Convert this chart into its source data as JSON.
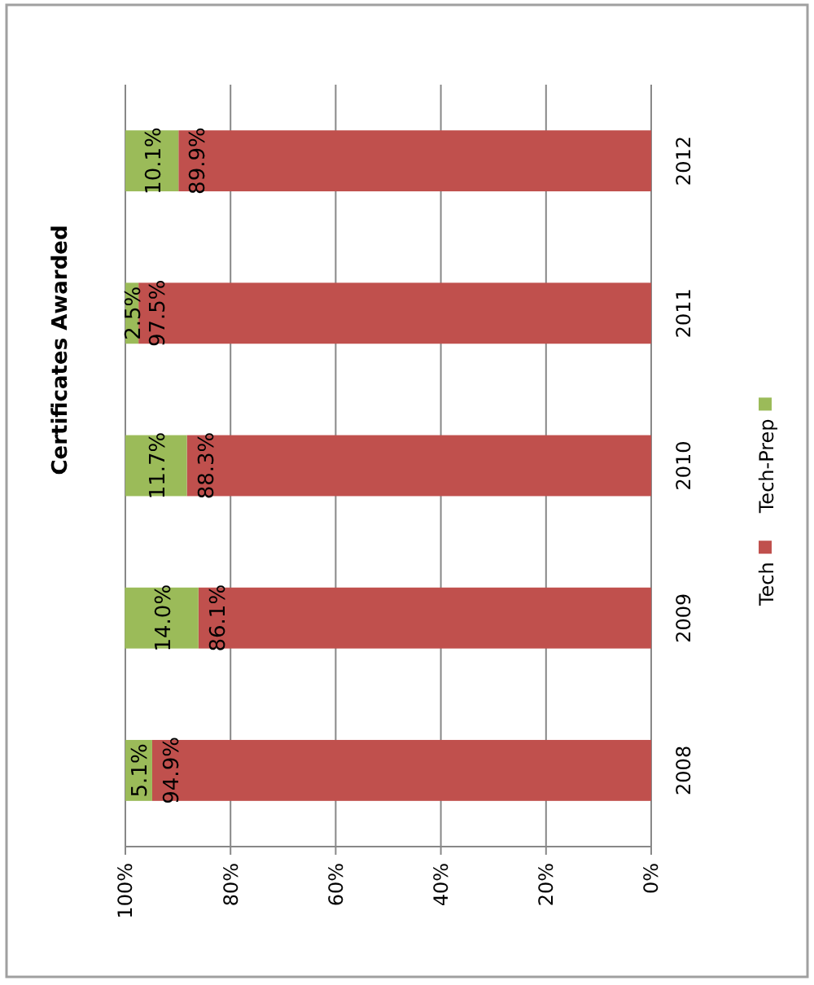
{
  "chart_data": {
    "type": "bar",
    "orientation": "horizontal",
    "title": "Certificates Awarded",
    "categories": [
      "2012",
      "2011",
      "2010",
      "2009",
      "2008"
    ],
    "series": [
      {
        "name": "Tech",
        "color": "#c0504d",
        "values": [
          89.9,
          97.5,
          88.3,
          86.1,
          94.9
        ],
        "value_labels": [
          "89.9%",
          "97.5%",
          "88.3%",
          "86.1%",
          "94.9%"
        ]
      },
      {
        "name": "Tech-Prep",
        "color": "#9bbb59",
        "values": [
          10.1,
          2.5,
          11.7,
          14.0,
          5.1
        ],
        "value_labels": [
          "10.1%",
          "2.5%",
          "11.7%",
          "14.0%",
          "5.1%"
        ]
      }
    ],
    "stacked": true,
    "xlim": [
      100,
      0
    ],
    "xticks": [
      {
        "value": 100,
        "label": "100%"
      },
      {
        "value": 80,
        "label": "80%"
      },
      {
        "value": 60,
        "label": "60%"
      },
      {
        "value": 40,
        "label": "40%"
      },
      {
        "value": 20,
        "label": "20%"
      },
      {
        "value": 0,
        "label": "0%"
      }
    ],
    "grid": "x",
    "legend": "right"
  }
}
